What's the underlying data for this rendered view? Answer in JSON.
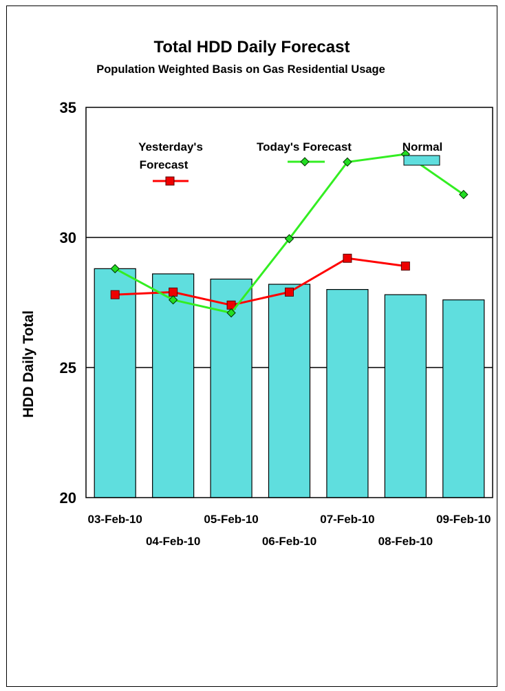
{
  "colors": {
    "normal_bar": "#5fdede",
    "yesterday_line": "#ff0000",
    "yesterday_marker": "#ee0000",
    "today_line": "#33ee22",
    "today_marker": "#22dd22",
    "gridline": "#000000"
  },
  "chart_data": {
    "type": "bar",
    "title": "Total HDD Daily Forecast",
    "subtitle": "Population Weighted Basis on Gas Residential Usage",
    "ylabel": "HDD Daily Total",
    "xlabel": "",
    "ylim": [
      20,
      35
    ],
    "yticks": [
      20,
      25,
      30,
      35
    ],
    "grid": true,
    "legend_placement": "top",
    "categories": [
      "03-Feb-10",
      "04-Feb-10",
      "05-Feb-10",
      "06-Feb-10",
      "07-Feb-10",
      "08-Feb-10",
      "09-Feb-10"
    ],
    "series": [
      {
        "name": "Normal",
        "type": "bar",
        "values": [
          28.8,
          28.6,
          28.4,
          28.2,
          28.0,
          27.8,
          27.6
        ]
      },
      {
        "name": "Yesterday's Forecast",
        "type": "line",
        "marker": "square",
        "values": [
          27.8,
          27.9,
          27.4,
          27.9,
          29.2,
          28.9,
          null
        ]
      },
      {
        "name": "Today's Forecast",
        "type": "line",
        "marker": "diamond",
        "values": [
          28.8,
          27.6,
          27.1,
          29.95,
          32.9,
          33.2,
          31.65
        ]
      }
    ]
  }
}
